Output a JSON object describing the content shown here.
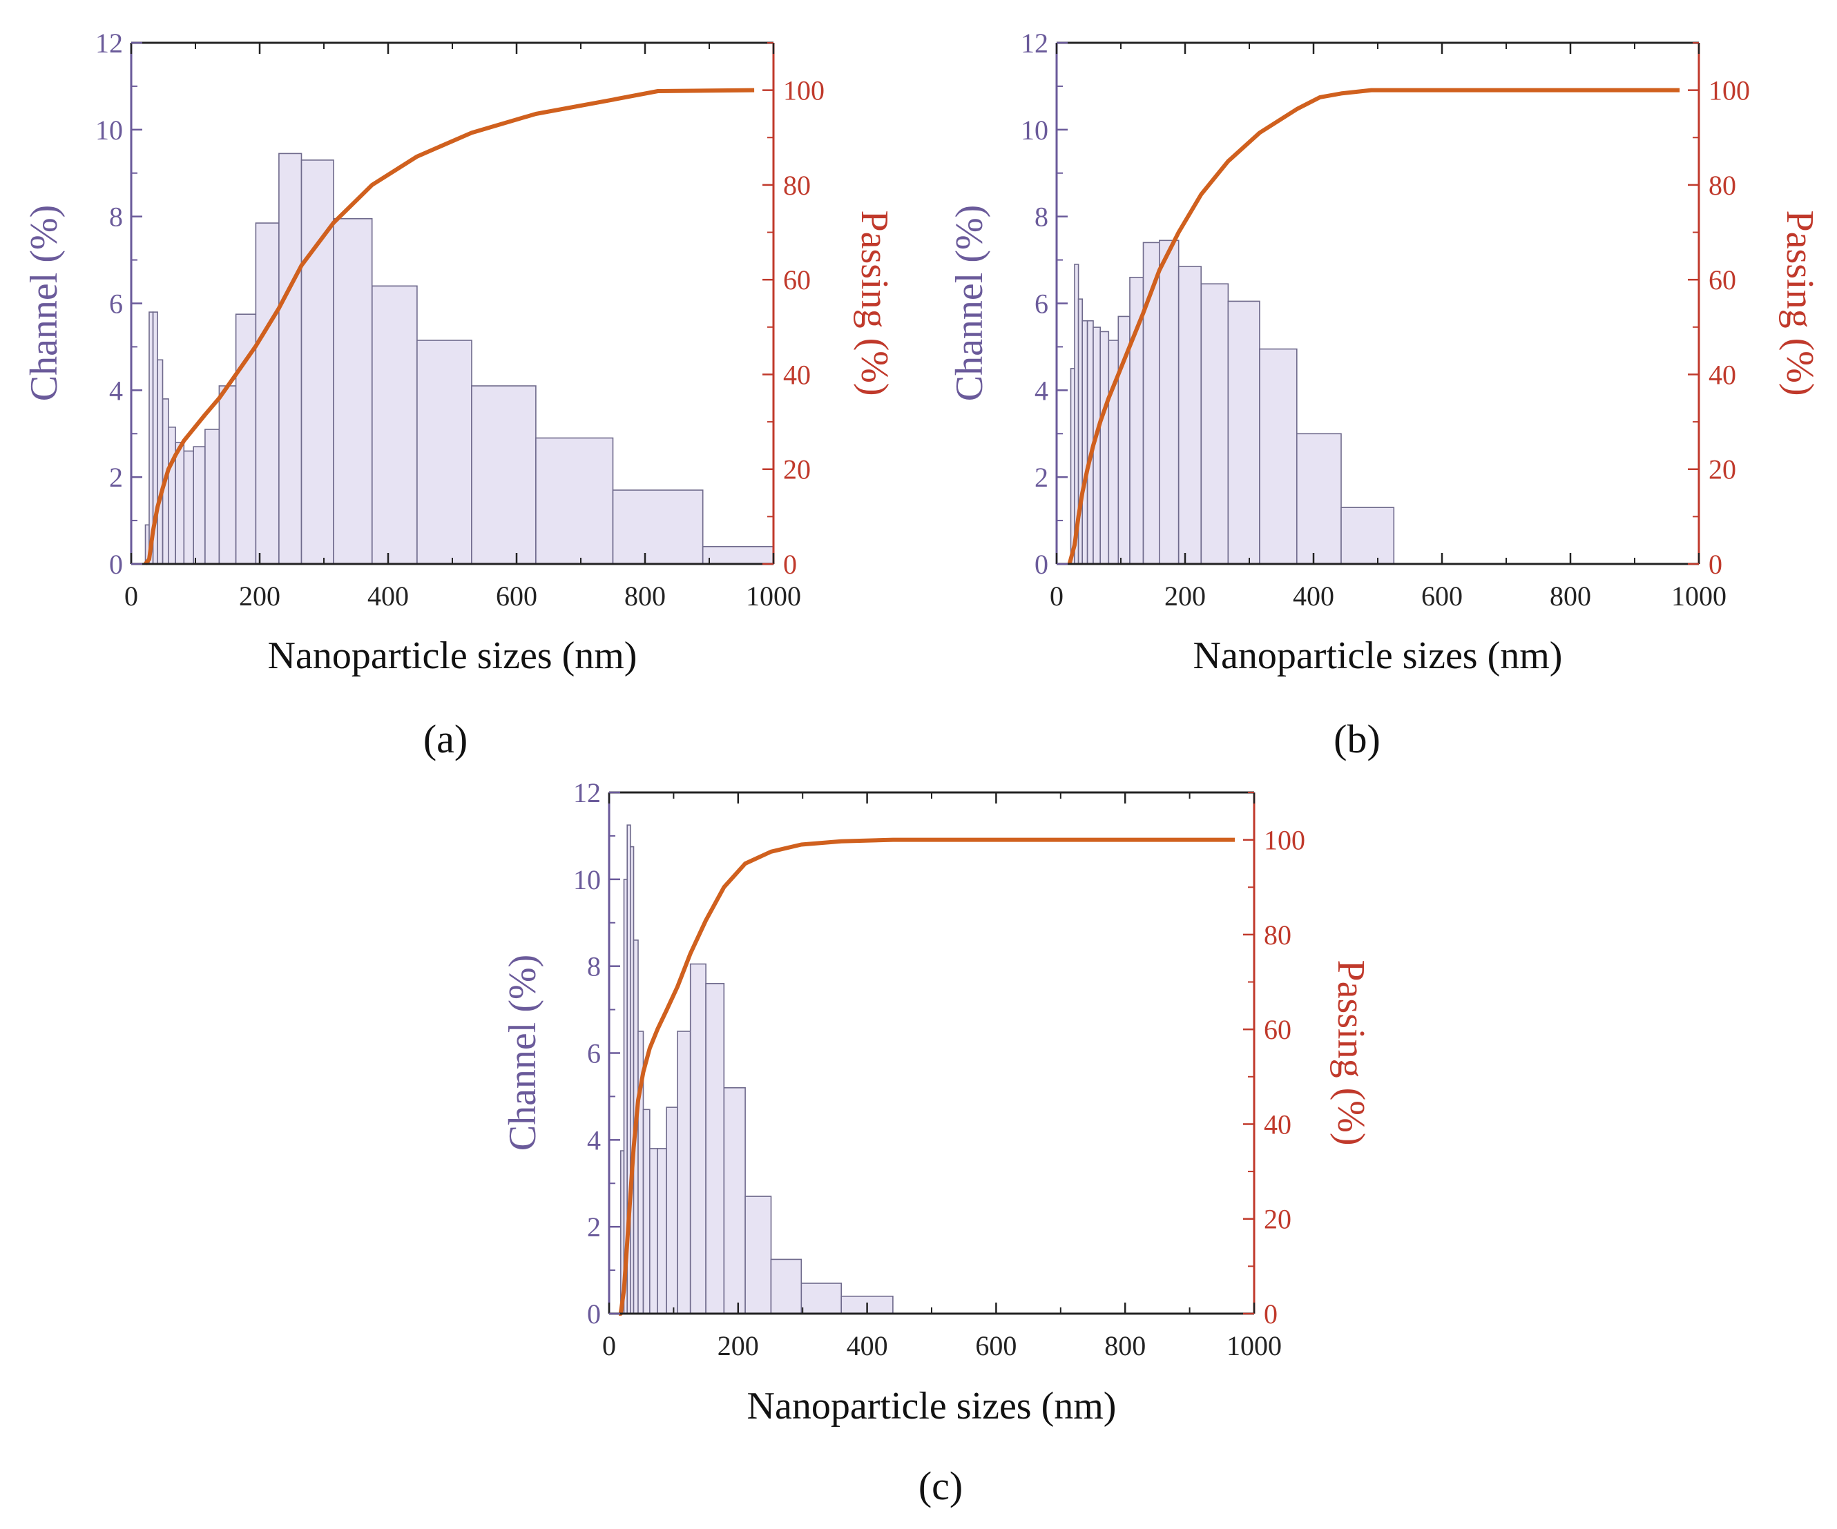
{
  "figure": {
    "colors": {
      "bar_fill": "#e7e3f3",
      "bar_stroke": "#6f6a8c",
      "line": "#d0601e",
      "left_axis": "#6a5a9a",
      "right_axis": "#c0392b",
      "axis_black": "#222222",
      "xlabel": "#111111"
    }
  },
  "chart_data": [
    {
      "panel_label": "(a)",
      "type": "bar+line",
      "xlabel": "Nanoparticle sizes (nm)",
      "ylabel_left": "Channel (%)",
      "ylabel_right": "Passing (%)",
      "xlim": [
        0,
        1000
      ],
      "ylim_left": [
        0,
        12
      ],
      "ylim_right": [
        0,
        110
      ],
      "x_ticks": [
        0,
        200,
        400,
        600,
        800,
        1000
      ],
      "y_ticks_left": [
        0,
        2,
        4,
        6,
        8,
        10,
        12
      ],
      "y_ticks_right": [
        0,
        20,
        40,
        60,
        80,
        100
      ],
      "bins": [
        {
          "x0": 22,
          "x1": 28,
          "value": 0.9
        },
        {
          "x0": 28,
          "x1": 34,
          "value": 5.8
        },
        {
          "x0": 34,
          "x1": 41,
          "value": 5.8
        },
        {
          "x0": 41,
          "x1": 49,
          "value": 4.7
        },
        {
          "x0": 49,
          "x1": 58,
          "value": 3.8
        },
        {
          "x0": 58,
          "x1": 69,
          "value": 3.15
        },
        {
          "x0": 69,
          "x1": 82,
          "value": 2.8
        },
        {
          "x0": 82,
          "x1": 97,
          "value": 2.6
        },
        {
          "x0": 97,
          "x1": 115,
          "value": 2.7
        },
        {
          "x0": 115,
          "x1": 137,
          "value": 3.1
        },
        {
          "x0": 137,
          "x1": 163,
          "value": 4.1
        },
        {
          "x0": 163,
          "x1": 194,
          "value": 5.75
        },
        {
          "x0": 194,
          "x1": 230,
          "value": 7.85
        },
        {
          "x0": 230,
          "x1": 265,
          "value": 9.45
        },
        {
          "x0": 265,
          "x1": 315,
          "value": 9.3
        },
        {
          "x0": 315,
          "x1": 375,
          "value": 7.95
        },
        {
          "x0": 375,
          "x1": 445,
          "value": 6.4
        },
        {
          "x0": 445,
          "x1": 530,
          "value": 5.15
        },
        {
          "x0": 530,
          "x1": 630,
          "value": 4.1
        },
        {
          "x0": 630,
          "x1": 750,
          "value": 2.9
        },
        {
          "x0": 750,
          "x1": 890,
          "value": 1.7
        },
        {
          "x0": 890,
          "x1": 1000,
          "value": 0.4
        }
      ],
      "cumulative": {
        "x": [
          22,
          28,
          34,
          41,
          49,
          58,
          69,
          82,
          97,
          115,
          137,
          163,
          194,
          230,
          265,
          315,
          375,
          445,
          530,
          630,
          750,
          820,
          970
        ],
        "y": [
          0,
          1,
          7,
          12,
          16,
          20,
          23,
          26,
          28.5,
          31.5,
          35,
          40,
          46,
          54,
          63,
          72,
          80,
          86,
          91,
          95,
          98,
          99.8,
          100
        ]
      }
    },
    {
      "panel_label": "(b)",
      "type": "bar+line",
      "xlabel": "Nanoparticle sizes (nm)",
      "ylabel_left": "Channel (%)",
      "ylabel_right": "Passing (%)",
      "xlim": [
        0,
        1000
      ],
      "ylim_left": [
        0,
        12
      ],
      "ylim_right": [
        0,
        110
      ],
      "x_ticks": [
        0,
        200,
        400,
        600,
        800,
        1000
      ],
      "y_ticks_left": [
        0,
        2,
        4,
        6,
        8,
        10,
        12
      ],
      "y_ticks_right": [
        0,
        20,
        40,
        60,
        80,
        100
      ],
      "bins": [
        {
          "x0": 22,
          "x1": 28,
          "value": 4.5
        },
        {
          "x0": 28,
          "x1": 34,
          "value": 6.9
        },
        {
          "x0": 34,
          "x1": 40,
          "value": 6.1
        },
        {
          "x0": 40,
          "x1": 48,
          "value": 5.6
        },
        {
          "x0": 48,
          "x1": 57,
          "value": 5.6
        },
        {
          "x0": 57,
          "x1": 68,
          "value": 5.45
        },
        {
          "x0": 68,
          "x1": 81,
          "value": 5.35
        },
        {
          "x0": 81,
          "x1": 96,
          "value": 5.15
        },
        {
          "x0": 96,
          "x1": 114,
          "value": 5.7
        },
        {
          "x0": 114,
          "x1": 135,
          "value": 6.6
        },
        {
          "x0": 135,
          "x1": 160,
          "value": 7.4
        },
        {
          "x0": 160,
          "x1": 190,
          "value": 7.45
        },
        {
          "x0": 190,
          "x1": 225,
          "value": 6.85
        },
        {
          "x0": 225,
          "x1": 267,
          "value": 6.45
        },
        {
          "x0": 267,
          "x1": 316,
          "value": 6.05
        },
        {
          "x0": 316,
          "x1": 374,
          "value": 4.95
        },
        {
          "x0": 374,
          "x1": 443,
          "value": 3.0
        },
        {
          "x0": 443,
          "x1": 525,
          "value": 1.3
        }
      ],
      "cumulative": {
        "x": [
          20,
          28,
          34,
          40,
          48,
          57,
          68,
          81,
          96,
          114,
          135,
          160,
          190,
          225,
          267,
          316,
          374,
          410,
          443,
          490,
          525,
          970
        ],
        "y": [
          0,
          4,
          10,
          15,
          20,
          25,
          30,
          35,
          40,
          46,
          53,
          62,
          70,
          78,
          85,
          91,
          96,
          98.5,
          99.3,
          100,
          100,
          100
        ]
      }
    },
    {
      "panel_label": "(c)",
      "type": "bar+line",
      "xlabel": "Nanoparticle sizes (nm)",
      "ylabel_left": "Channel (%)",
      "ylabel_right": "Passing (%)",
      "xlim": [
        0,
        1000
      ],
      "ylim_left": [
        0,
        12
      ],
      "ylim_right": [
        0,
        110
      ],
      "x_ticks": [
        0,
        200,
        400,
        600,
        800,
        1000
      ],
      "y_ticks_left": [
        0,
        2,
        4,
        6,
        8,
        10,
        12
      ],
      "y_ticks_right": [
        0,
        20,
        40,
        60,
        80,
        100
      ],
      "bins": [
        {
          "x0": 18,
          "x1": 23,
          "value": 3.75
        },
        {
          "x0": 23,
          "x1": 28,
          "value": 10.0
        },
        {
          "x0": 28,
          "x1": 33,
          "value": 11.25
        },
        {
          "x0": 33,
          "x1": 38,
          "value": 10.75
        },
        {
          "x0": 38,
          "x1": 45,
          "value": 8.6
        },
        {
          "x0": 45,
          "x1": 53,
          "value": 6.5
        },
        {
          "x0": 53,
          "x1": 63,
          "value": 4.7
        },
        {
          "x0": 63,
          "x1": 75,
          "value": 3.8
        },
        {
          "x0": 75,
          "x1": 89,
          "value": 3.8
        },
        {
          "x0": 89,
          "x1": 106,
          "value": 4.75
        },
        {
          "x0": 106,
          "x1": 126,
          "value": 6.5
        },
        {
          "x0": 126,
          "x1": 150,
          "value": 8.05
        },
        {
          "x0": 150,
          "x1": 178,
          "value": 7.6
        },
        {
          "x0": 178,
          "x1": 211,
          "value": 5.2
        },
        {
          "x0": 211,
          "x1": 251,
          "value": 2.7
        },
        {
          "x0": 251,
          "x1": 298,
          "value": 1.25
        },
        {
          "x0": 298,
          "x1": 360,
          "value": 0.7
        },
        {
          "x0": 360,
          "x1": 440,
          "value": 0.4
        }
      ],
      "cumulative": {
        "x": [
          15,
          18,
          23,
          28,
          33,
          38,
          45,
          53,
          63,
          75,
          89,
          106,
          126,
          150,
          178,
          211,
          251,
          298,
          360,
          440,
          970
        ],
        "y": [
          0,
          0,
          5,
          15,
          25,
          35,
          45,
          51,
          56,
          60,
          64,
          69,
          76,
          83,
          90,
          95,
          97.5,
          99,
          99.7,
          100,
          100
        ]
      }
    }
  ]
}
